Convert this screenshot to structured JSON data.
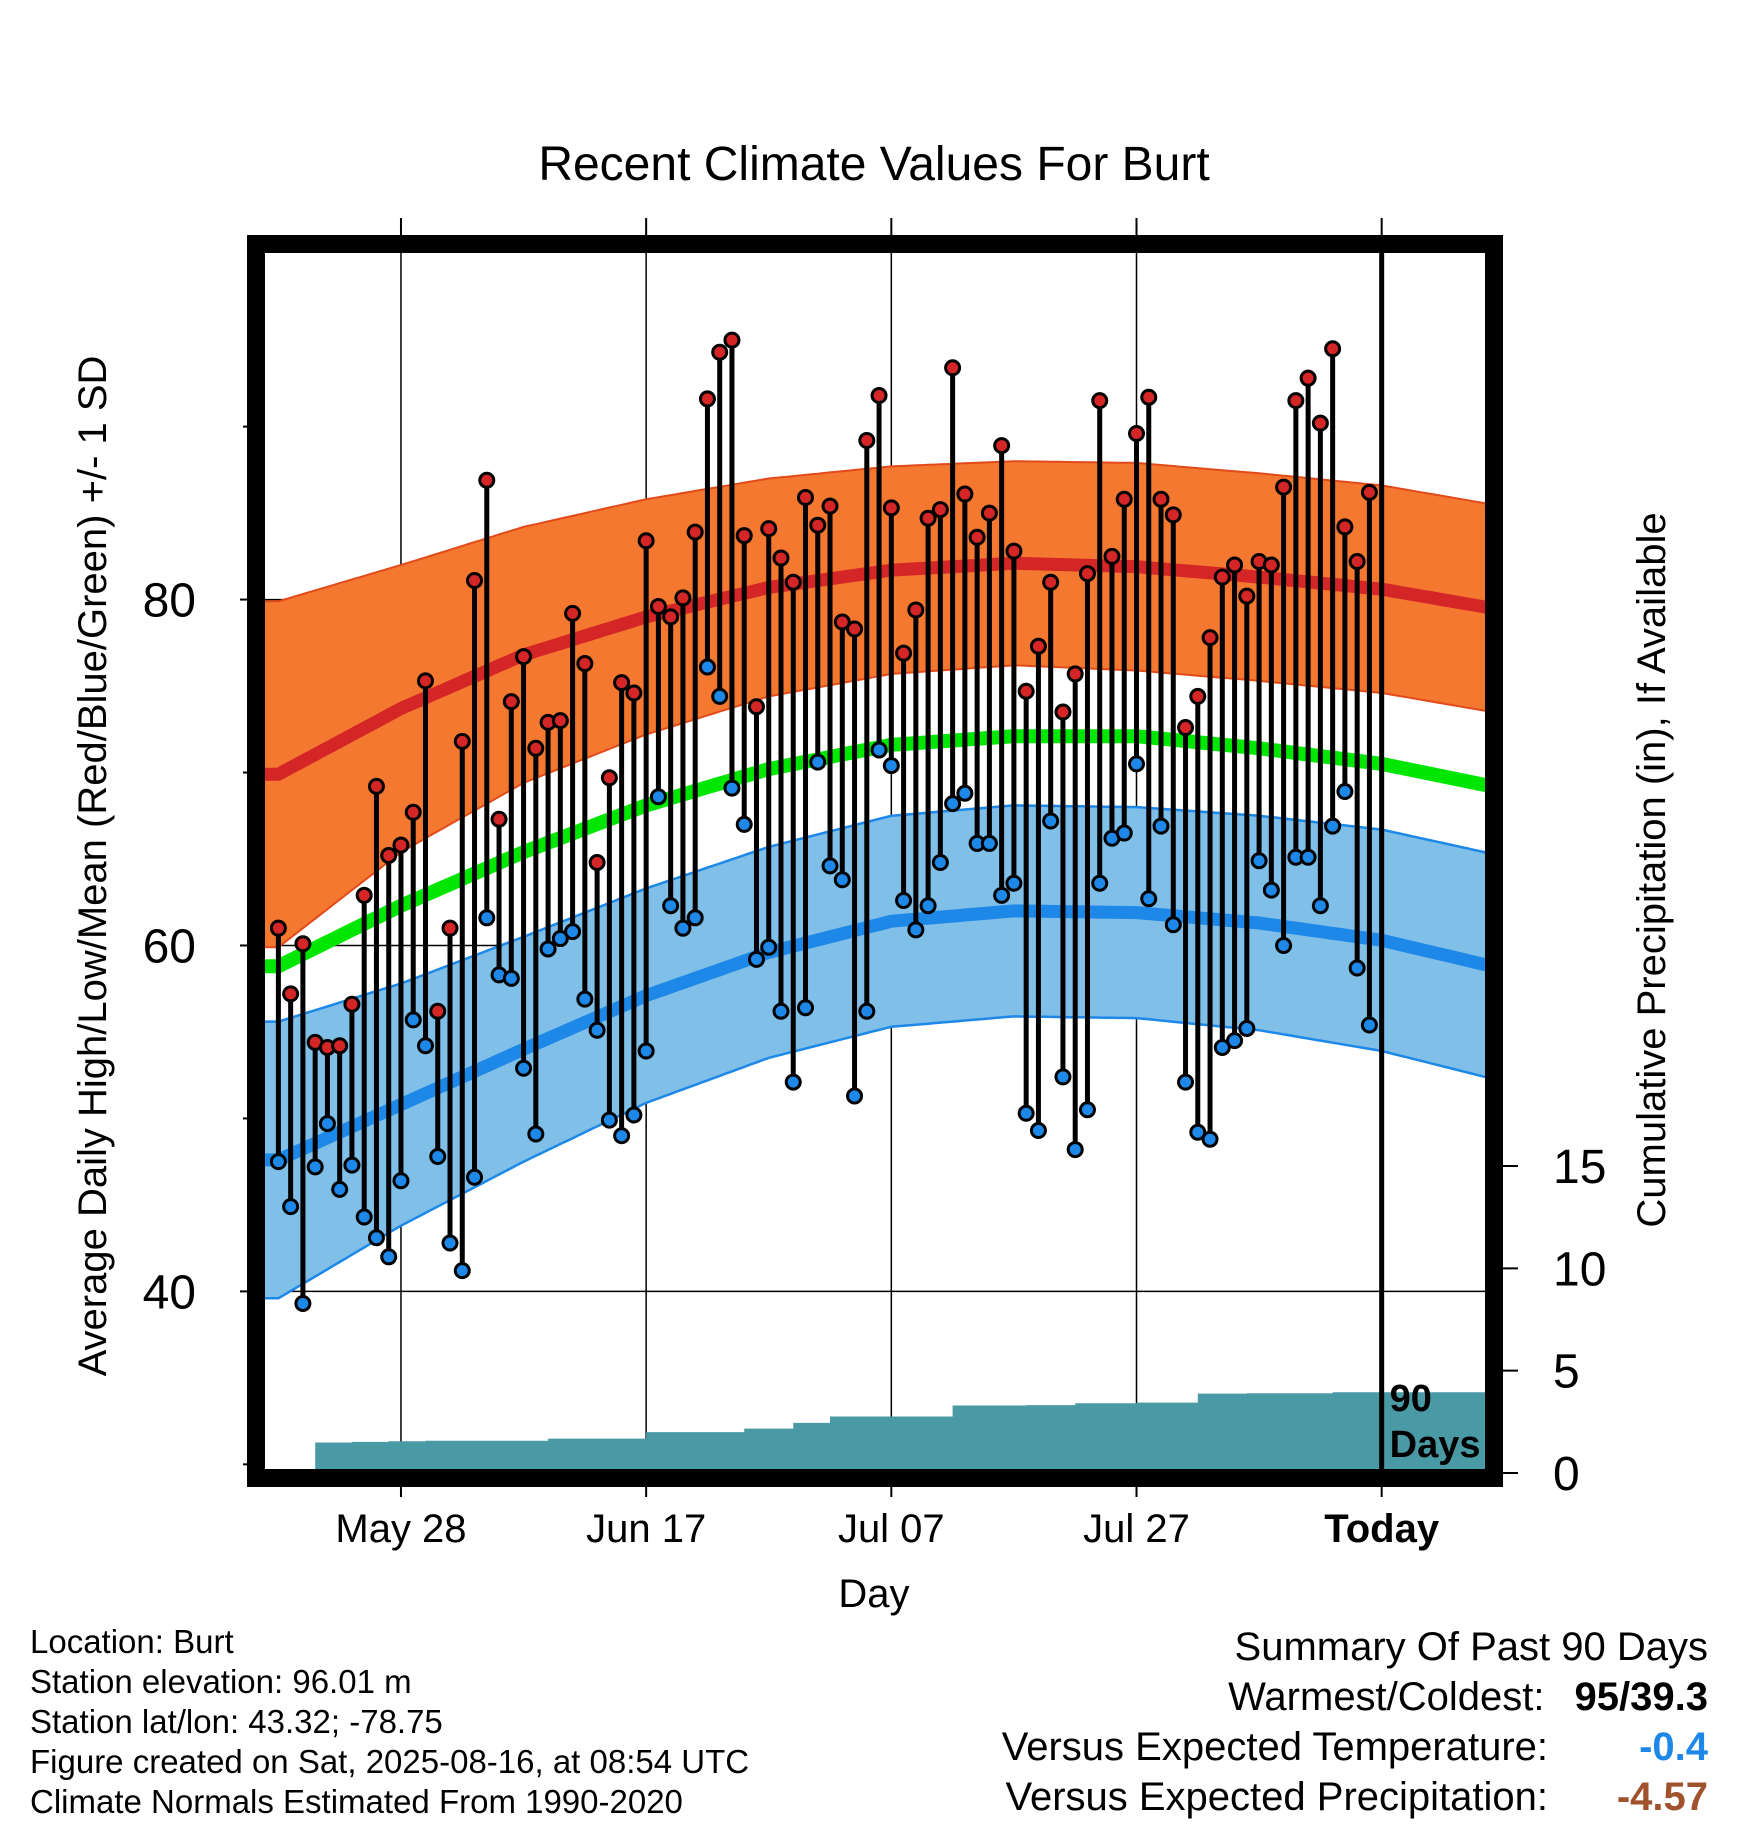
{
  "chart_data": {
    "type": "line",
    "title": "Recent Climate Values For Burt",
    "xlabel": "Day",
    "ylabel": "Average Daily High/Low/Mean (Red/Blue/Green) +/- 1 SD",
    "y2label": "Cumulative Precipitation (in), If Available",
    "ylim": [
      29.5,
      100.5
    ],
    "y_ticks": [
      40,
      60,
      80
    ],
    "y2_ticks": [
      0,
      5,
      10,
      15
    ],
    "y2lim": [
      0,
      60
    ],
    "x_ticks": [
      "May 28",
      "Jun 17",
      "Jul 07",
      "Jul 27",
      "Today"
    ],
    "x_tick_days": [
      -80,
      -60,
      -40,
      -20,
      0
    ],
    "xlim": [
      -91.5,
      9
    ],
    "grid": true,
    "today_marker_label": "90 Days",
    "colors": {
      "high": "#d42626",
      "low": "#1e88e8",
      "mean": "#00e600",
      "high_band": "#f47830",
      "low_band": "#7fbfe8",
      "precip": "#4a9aa5"
    },
    "normals": {
      "days": [
        -90,
        -80,
        -70,
        -60,
        -50,
        -40,
        -30,
        -20,
        -10,
        0,
        9
      ],
      "high": [
        69.9,
        73.7,
        76.8,
        79.0,
        80.7,
        81.7,
        82.1,
        81.9,
        81.3,
        80.6,
        79.5
      ],
      "high_sd": [
        10,
        8.3,
        7.4,
        6.8,
        6.3,
        6.0,
        5.9,
        6.0,
        6.0,
        6.0,
        6.0
      ],
      "low": [
        47.6,
        50.8,
        54.0,
        57.1,
        59.6,
        61.4,
        62.0,
        61.9,
        61.3,
        60.3,
        58.8
      ],
      "low_sd": [
        8.0,
        7.0,
        6.5,
        6.2,
        6.1,
        6.1,
        6.1,
        6.1,
        6.2,
        6.4,
        6.5
      ],
      "mean": [
        58.8,
        62.3,
        65.4,
        68.1,
        70.2,
        71.6,
        72.1,
        72.1,
        71.4,
        70.5,
        69.2
      ]
    },
    "series": [
      {
        "name": "High",
        "values": [
          61,
          57.2,
          60.1,
          54.4,
          54.1,
          54.2,
          56.6,
          62.9,
          69.2,
          65.2,
          65.8,
          67.7,
          75.3,
          56.2,
          61,
          71.8,
          81.1,
          86.9,
          67.3,
          74.1,
          76.7,
          71.4,
          72.9,
          73,
          79.2,
          76.3,
          64.8,
          69.7,
          75.2,
          74.6,
          83.4,
          79.6,
          79,
          80.1,
          83.9,
          91.6,
          94.3,
          95,
          83.7,
          73.8,
          84.1,
          82.4,
          81,
          85.9,
          84.3,
          85.4,
          78.7,
          78.3,
          89.2,
          91.8,
          85.3,
          76.9,
          79.4,
          84.7,
          85.2,
          93.4,
          86.1,
          83.6,
          85,
          88.9,
          82.8,
          74.7,
          77.3,
          81,
          73.5,
          75.7,
          81.5,
          91.5,
          82.5,
          85.8,
          89.6,
          91.7,
          85.8,
          84.9,
          72.6,
          74.4,
          77.8,
          81.3,
          82,
          80.2,
          82.2,
          82,
          86.5,
          91.5,
          92.8,
          90.2,
          94.5,
          84.2,
          82.2,
          86.2
        ]
      },
      {
        "name": "Low",
        "values": [
          47.5,
          44.9,
          39.3,
          47.2,
          49.7,
          45.9,
          47.3,
          44.3,
          43.1,
          42,
          46.4,
          55.7,
          54.2,
          47.8,
          42.8,
          41.2,
          46.6,
          61.6,
          58.3,
          58.1,
          52.9,
          49.1,
          59.8,
          60.4,
          60.8,
          56.9,
          55.1,
          49.9,
          49,
          50.2,
          53.9,
          68.6,
          62.3,
          61,
          61.6,
          76.1,
          74.4,
          69.1,
          67,
          59.2,
          59.9,
          56.2,
          52.1,
          56.4,
          70.6,
          64.6,
          63.8,
          51.3,
          56.2,
          71.3,
          70.4,
          62.6,
          60.9,
          62.3,
          64.8,
          68.2,
          68.8,
          65.9,
          65.9,
          62.9,
          63.6,
          50.3,
          49.3,
          67.2,
          52.4,
          48.2,
          50.5,
          63.6,
          66.2,
          66.5,
          70.5,
          62.7,
          66.9,
          61.2,
          52.1,
          49.2,
          48.8,
          54.1,
          54.5,
          55.2,
          64.9,
          63.2,
          60,
          65.1,
          65.1,
          62.3,
          66.9,
          68.9,
          58.7,
          55.4
        ]
      },
      {
        "name": "Cumulative Precipitation",
        "values": [
          0,
          0,
          0,
          0,
          1.49,
          1.49,
          1.49,
          1.52,
          1.52,
          1.52,
          1.55,
          1.55,
          1.55,
          1.58,
          1.58,
          1.58,
          1.58,
          1.58,
          1.58,
          1.58,
          1.58,
          1.58,
          1.58,
          1.68,
          1.68,
          1.68,
          1.68,
          1.68,
          1.68,
          1.68,
          1.68,
          2.0,
          2.0,
          2.0,
          2.0,
          2.0,
          2.0,
          2.0,
          2.0,
          2.17,
          2.17,
          2.17,
          2.17,
          2.45,
          2.45,
          2.45,
          2.76,
          2.76,
          2.76,
          2.76,
          2.76,
          2.76,
          2.76,
          2.76,
          2.76,
          2.76,
          3.3,
          3.3,
          3.3,
          3.3,
          3.3,
          3.3,
          3.32,
          3.32,
          3.32,
          3.32,
          3.41,
          3.41,
          3.41,
          3.41,
          3.41,
          3.44,
          3.44,
          3.44,
          3.44,
          3.44,
          3.88,
          3.88,
          3.88,
          3.88,
          3.9,
          3.9,
          3.9,
          3.9,
          3.9,
          3.9,
          3.9,
          3.95,
          3.95,
          3.95,
          3.95,
          3.95,
          3.95,
          3.95,
          3.95,
          3.95,
          3.95,
          3.95,
          3.95,
          3.95
        ]
      }
    ]
  },
  "footer": {
    "location": "Location: Burt",
    "elevation": "Station elevation: 96.01 m",
    "latlon": "Station lat/lon: 43.32; -78.75",
    "created": "Figure created on Sat, 2025-08-16, at 08:54 UTC",
    "normals": "Climate Normals Estimated From 1990-2020"
  },
  "summary": {
    "title": "Summary Of Past 90 Days",
    "warmest_label": "Warmest/Coldest:",
    "warmest_value": "95/39.3",
    "temp_label": "Versus Expected Temperature:",
    "temp_value": "-0.4",
    "temp_color": "#1e88e8",
    "precip_label": "Versus Expected Precipitation:",
    "precip_value": "-4.57",
    "precip_color": "#a0522d"
  }
}
